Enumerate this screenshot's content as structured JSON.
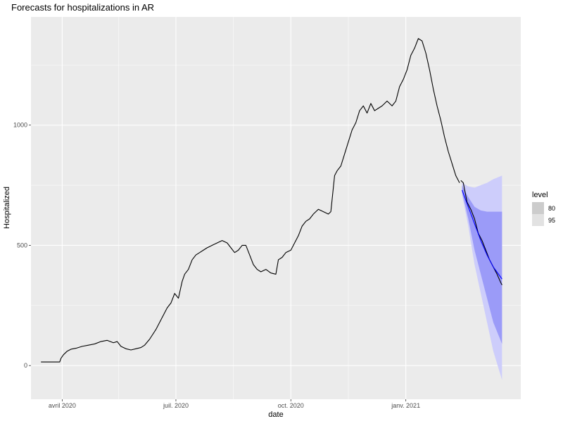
{
  "chart_data": {
    "type": "line",
    "title": "Forecasts for hospitalizations in AR",
    "xlabel": "date",
    "ylabel": "Hospitalized",
    "xlim": [
      "2020-03-07",
      "2021-04-03"
    ],
    "ylim": [
      -140,
      1450
    ],
    "grid": true,
    "x_ticks": [
      {
        "date": "2020-04-01",
        "label": "avril 2020"
      },
      {
        "date": "2020-07-01",
        "label": "juil. 2020"
      },
      {
        "date": "2020-10-01",
        "label": "oct. 2020"
      },
      {
        "date": "2021-01-01",
        "label": "janv. 2021"
      }
    ],
    "x_minor_ticks": [
      "2020-05-16",
      "2020-08-16",
      "2020-11-16"
    ],
    "y_ticks": [
      0,
      500,
      1000
    ],
    "y_minor_ticks": [
      250,
      750,
      1250
    ],
    "series": [
      {
        "role": "observed",
        "color": "#000000",
        "points": [
          [
            "2020-03-15",
            15
          ],
          [
            "2020-03-25",
            15
          ],
          [
            "2020-03-30",
            15
          ],
          [
            "2020-03-31",
            30
          ],
          [
            "2020-04-02",
            45
          ],
          [
            "2020-04-05",
            60
          ],
          [
            "2020-04-08",
            68
          ],
          [
            "2020-04-12",
            72
          ],
          [
            "2020-04-17",
            80
          ],
          [
            "2020-04-22",
            85
          ],
          [
            "2020-04-27",
            90
          ],
          [
            "2020-05-02",
            100
          ],
          [
            "2020-05-07",
            105
          ],
          [
            "2020-05-12",
            95
          ],
          [
            "2020-05-15",
            100
          ],
          [
            "2020-05-18",
            80
          ],
          [
            "2020-05-22",
            70
          ],
          [
            "2020-05-26",
            65
          ],
          [
            "2020-05-30",
            70
          ],
          [
            "2020-06-03",
            75
          ],
          [
            "2020-06-06",
            85
          ],
          [
            "2020-06-10",
            110
          ],
          [
            "2020-06-15",
            150
          ],
          [
            "2020-06-20",
            200
          ],
          [
            "2020-06-24",
            240
          ],
          [
            "2020-06-27",
            260
          ],
          [
            "2020-06-30",
            300
          ],
          [
            "2020-07-03",
            280
          ],
          [
            "2020-07-06",
            350
          ],
          [
            "2020-07-08",
            380
          ],
          [
            "2020-07-11",
            400
          ],
          [
            "2020-07-14",
            440
          ],
          [
            "2020-07-17",
            460
          ],
          [
            "2020-07-20",
            470
          ],
          [
            "2020-07-23",
            480
          ],
          [
            "2020-07-26",
            490
          ],
          [
            "2020-07-30",
            500
          ],
          [
            "2020-08-03",
            510
          ],
          [
            "2020-08-07",
            520
          ],
          [
            "2020-08-11",
            510
          ],
          [
            "2020-08-14",
            490
          ],
          [
            "2020-08-17",
            470
          ],
          [
            "2020-08-20",
            480
          ],
          [
            "2020-08-23",
            500
          ],
          [
            "2020-08-26",
            500
          ],
          [
            "2020-08-29",
            460
          ],
          [
            "2020-09-01",
            420
          ],
          [
            "2020-09-04",
            400
          ],
          [
            "2020-09-07",
            390
          ],
          [
            "2020-09-11",
            400
          ],
          [
            "2020-09-15",
            385
          ],
          [
            "2020-09-19",
            380
          ],
          [
            "2020-09-21",
            440
          ],
          [
            "2020-09-24",
            450
          ],
          [
            "2020-09-27",
            470
          ],
          [
            "2020-10-01",
            480
          ],
          [
            "2020-10-04",
            510
          ],
          [
            "2020-10-07",
            540
          ],
          [
            "2020-10-10",
            580
          ],
          [
            "2020-10-13",
            600
          ],
          [
            "2020-10-16",
            610
          ],
          [
            "2020-10-19",
            630
          ],
          [
            "2020-10-23",
            650
          ],
          [
            "2020-10-27",
            640
          ],
          [
            "2020-10-31",
            630
          ],
          [
            "2020-11-02",
            640
          ],
          [
            "2020-11-05",
            790
          ],
          [
            "2020-11-07",
            810
          ],
          [
            "2020-11-10",
            830
          ],
          [
            "2020-11-13",
            880
          ],
          [
            "2020-11-16",
            930
          ],
          [
            "2020-11-19",
            980
          ],
          [
            "2020-11-22",
            1010
          ],
          [
            "2020-11-25",
            1060
          ],
          [
            "2020-11-28",
            1080
          ],
          [
            "2020-12-01",
            1050
          ],
          [
            "2020-12-04",
            1090
          ],
          [
            "2020-12-07",
            1060
          ],
          [
            "2020-12-10",
            1070
          ],
          [
            "2020-12-13",
            1080
          ],
          [
            "2020-12-17",
            1100
          ],
          [
            "2020-12-21",
            1080
          ],
          [
            "2020-12-24",
            1100
          ],
          [
            "2020-12-27",
            1160
          ],
          [
            "2020-12-30",
            1190
          ],
          [
            "2021-01-02",
            1230
          ],
          [
            "2021-01-05",
            1290
          ],
          [
            "2021-01-08",
            1320
          ],
          [
            "2021-01-11",
            1360
          ],
          [
            "2021-01-14",
            1350
          ],
          [
            "2021-01-17",
            1300
          ],
          [
            "2021-01-20",
            1230
          ],
          [
            "2021-01-23",
            1150
          ],
          [
            "2021-01-26",
            1080
          ],
          [
            "2021-01-29",
            1020
          ],
          [
            "2021-02-01",
            950
          ],
          [
            "2021-02-04",
            890
          ],
          [
            "2021-02-07",
            840
          ],
          [
            "2021-02-10",
            790
          ],
          [
            "2021-02-13",
            760
          ]
        ]
      },
      {
        "role": "actual-after-forecast-start",
        "color": "#000000",
        "points": [
          [
            "2021-02-14",
            770
          ],
          [
            "2021-02-16",
            760
          ],
          [
            "2021-02-19",
            680
          ],
          [
            "2021-02-22",
            650
          ],
          [
            "2021-02-25",
            610
          ],
          [
            "2021-02-28",
            550
          ],
          [
            "2021-03-03",
            520
          ],
          [
            "2021-03-06",
            480
          ],
          [
            "2021-03-09",
            440
          ],
          [
            "2021-03-12",
            410
          ],
          [
            "2021-03-15",
            380
          ],
          [
            "2021-03-18",
            345
          ],
          [
            "2021-03-19",
            335
          ]
        ]
      },
      {
        "role": "forecast-mean",
        "color": "#0000ff",
        "points": [
          [
            "2021-02-15",
            730
          ],
          [
            "2021-02-20",
            660
          ],
          [
            "2021-02-25",
            590
          ],
          [
            "2021-03-02",
            520
          ],
          [
            "2021-03-07",
            460
          ],
          [
            "2021-03-12",
            410
          ],
          [
            "2021-03-19",
            360
          ]
        ]
      }
    ],
    "bands": [
      {
        "level": "95",
        "color": "#cdcdfb",
        "x": [
          "2021-02-15",
          "2021-02-20",
          "2021-02-25",
          "2021-03-02",
          "2021-03-07",
          "2021-03-12",
          "2021-03-19"
        ],
        "lower": [
          710,
          580,
          420,
          300,
          180,
          60,
          -60
        ],
        "upper": [
          760,
          745,
          740,
          750,
          760,
          775,
          790
        ]
      },
      {
        "level": "80",
        "color": "#9b9bf8",
        "x": [
          "2021-02-15",
          "2021-02-20",
          "2021-02-25",
          "2021-03-02",
          "2021-03-07",
          "2021-03-12",
          "2021-03-19"
        ],
        "lower": [
          720,
          610,
          480,
          380,
          280,
          180,
          90
        ],
        "upper": [
          750,
          700,
          660,
          645,
          640,
          640,
          640
        ]
      }
    ],
    "legend": {
      "title": "level",
      "position": "right",
      "items": [
        {
          "label": "80",
          "color": "#cccccc"
        },
        {
          "label": "95",
          "color": "#e2e2e2"
        }
      ]
    },
    "colors": {
      "panel_background": "#ebebeb",
      "grid": "#ffffff"
    }
  }
}
